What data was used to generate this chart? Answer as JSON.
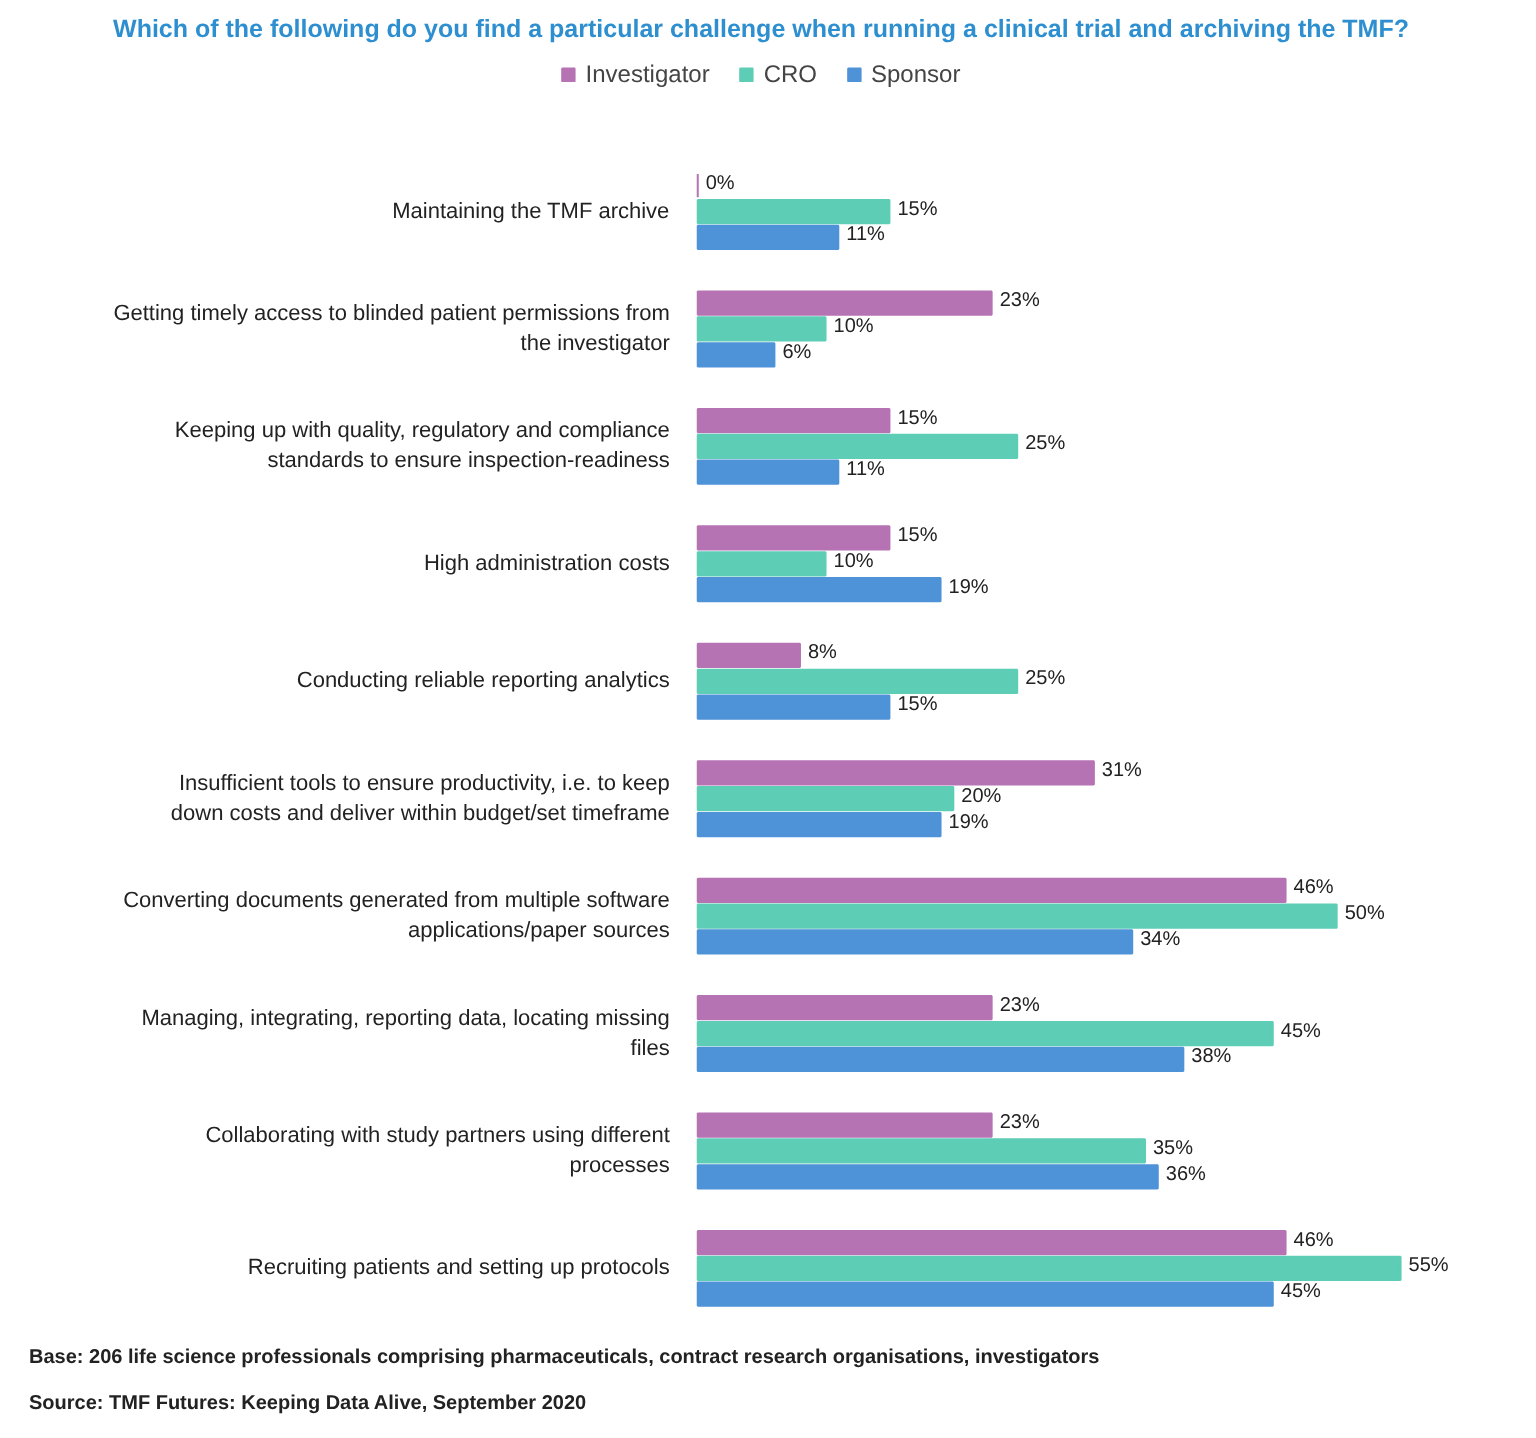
{
  "chart_data": {
    "type": "bar",
    "orientation": "horizontal",
    "title": "Which of the following do you find a particular challenge when running a clinical trial and archiving the TMF?",
    "categories": [
      "Maintaining the TMF archive",
      "Getting timely access to blinded patient permissions from the investigator",
      "Keeping up with quality, regulatory and compliance standards to ensure inspection-readiness",
      "High administration costs",
      "Conducting reliable reporting analytics",
      "Insufficient tools to ensure productivity, i.e. to keep down costs and deliver within budget/set timeframe",
      "Converting documents generated from multiple software applications/paper sources",
      "Managing, integrating, reporting data, locating missing files",
      "Collaborating with study partners using different processes",
      "Recruiting patients and setting up protocols"
    ],
    "series": [
      {
        "name": "Investigator",
        "color": "#b673b4",
        "values": [
          0,
          23,
          15,
          15,
          8,
          31,
          46,
          23,
          23,
          46
        ],
        "value_labels": [
          "0%",
          "23%",
          "15%",
          "15%",
          "8%",
          "31%",
          "46%",
          "23%",
          "23%",
          "46%"
        ]
      },
      {
        "name": "CRO",
        "color": "#5ecdb6",
        "values": [
          15,
          10,
          25,
          10,
          25,
          20,
          50,
          45,
          35,
          55
        ],
        "value_labels": [
          "15%",
          "10%",
          "25%",
          "10%",
          "25%",
          "20%",
          "50%",
          "45%",
          "35%",
          "55%"
        ]
      },
      {
        "name": "Sponsor",
        "color": "#4e93d8",
        "values": [
          11,
          6,
          11,
          19,
          15,
          19,
          34,
          38,
          36,
          45
        ],
        "value_labels": [
          "11%",
          "6%",
          "11%",
          "19%",
          "15%",
          "19%",
          "34%",
          "38%",
          "36%",
          "45%"
        ]
      }
    ],
    "legend": "top",
    "grid": false,
    "annotations": [
      "Base: 206 life science professionals comprising pharmaceuticals, contract research organisations, investigators",
      "Source: TMF Futures: Keeping Data Alive, September 2020"
    ]
  }
}
